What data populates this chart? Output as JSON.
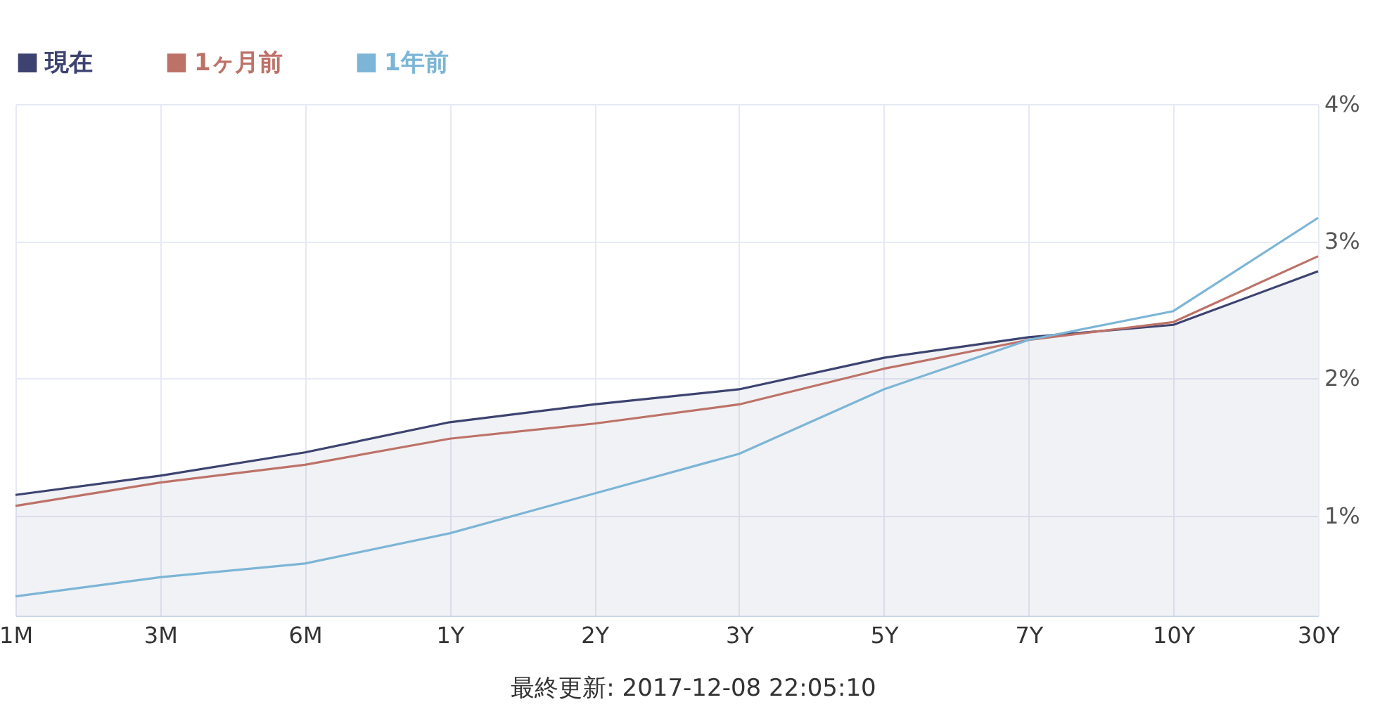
{
  "chart_data": {
    "type": "line",
    "categories": [
      "1M",
      "3M",
      "6M",
      "1Y",
      "2Y",
      "3Y",
      "5Y",
      "7Y",
      "10Y",
      "30Y"
    ],
    "series": [
      {
        "name": "現在",
        "type": "area",
        "color": "#3d4370",
        "values": [
          1.15,
          1.29,
          1.46,
          1.68,
          1.81,
          1.92,
          2.15,
          2.3,
          2.39,
          2.78
        ]
      },
      {
        "name": "1ヶ月前",
        "color": "#bd7268",
        "values": [
          1.07,
          1.24,
          1.37,
          1.56,
          1.67,
          1.81,
          2.07,
          2.28,
          2.41,
          2.89
        ]
      },
      {
        "name": "1年前",
        "color": "#7cb5d6",
        "values": [
          0.41,
          0.55,
          0.65,
          0.87,
          1.16,
          1.45,
          1.92,
          2.28,
          2.49,
          3.17
        ]
      }
    ],
    "ylim": [
      0.27,
      4
    ],
    "yticks": [
      {
        "value": 1,
        "label": "1%"
      },
      {
        "value": 2,
        "label": "2%"
      },
      {
        "value": 3,
        "label": "3%"
      },
      {
        "value": 4,
        "label": "4%"
      }
    ],
    "grid": true,
    "legend": "top left",
    "line_style": "solid",
    "annotations": [
      "最終更新: 2017-12-08 22:05:10"
    ]
  }
}
